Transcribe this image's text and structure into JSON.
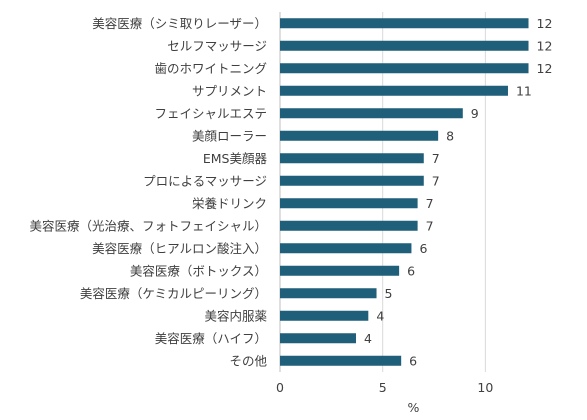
{
  "chart_data": {
    "type": "bar",
    "orientation": "horizontal",
    "categories": [
      "美容医療（シミ取りレーザー）",
      "セルフマッサージ",
      "歯のホワイトニング",
      "サプリメント",
      "フェイシャルエステ",
      "美顔ローラー",
      "EMS美顔器",
      "プロによるマッサージ",
      "栄養ドリンク",
      "美容医療（光治療、フォトフェイシャル）",
      "美容医療（ヒアルロン酸注入）",
      "美容医療（ボトックス）",
      "美容医療（ケミカルピーリング）",
      "美容内服薬",
      "美容医療（ハイフ）",
      "その他"
    ],
    "values": [
      12.1,
      12.1,
      12.1,
      11.1,
      8.9,
      7.7,
      7.0,
      7.0,
      6.7,
      6.7,
      6.4,
      5.8,
      4.7,
      4.3,
      3.7,
      5.9
    ],
    "data_labels": [
      "12",
      "12",
      "12",
      "11",
      "9",
      "8",
      "7",
      "7",
      "7",
      "7",
      "6",
      "6",
      "5",
      "4",
      "4",
      "6"
    ],
    "xlabel": "%",
    "xlim": [
      0,
      13
    ],
    "xticks": [
      0,
      5,
      10
    ],
    "grid": "vertical",
    "bar_color": "#1f5f7a"
  }
}
